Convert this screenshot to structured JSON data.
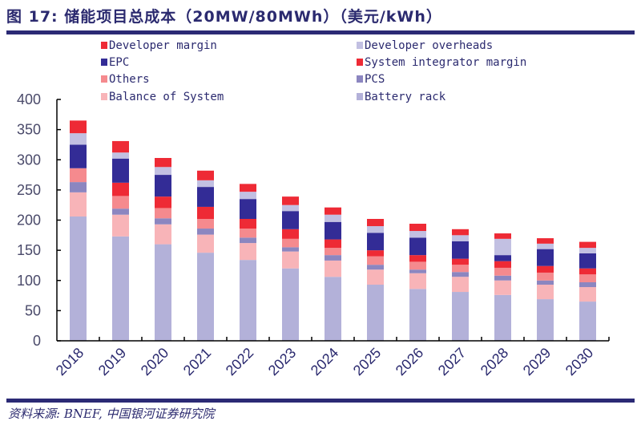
{
  "header": {
    "title": "图 17: 储能项目总成本（20MW/80MWh）（美元/kWh）"
  },
  "footer": {
    "source": "资料来源: BNEF, 中国银河证券研究院"
  },
  "chart_data": {
    "type": "bar",
    "stacked": true,
    "title": "储能项目总成本（20MW/80MWh）（美元/kWh）",
    "xlabel": "",
    "ylabel": "",
    "ylim": [
      0,
      400
    ],
    "yticks": [
      0,
      50,
      100,
      150,
      200,
      250,
      300,
      350,
      400
    ],
    "grid": false,
    "legend_placement": "top",
    "categories": [
      "2018",
      "2019",
      "2020",
      "2021",
      "2022",
      "2023",
      "2024",
      "2025",
      "2026",
      "2027",
      "2028",
      "2029",
      "2030"
    ],
    "series": [
      {
        "name": "Battery rack",
        "color": "#b3b1d9",
        "values": [
          206,
          173,
          160,
          146,
          134,
          120,
          106,
          93,
          86,
          81,
          76,
          69,
          65
        ]
      },
      {
        "name": "Balance of System",
        "color": "#f8b4b8",
        "values": [
          40,
          36,
          33,
          30,
          28,
          28,
          27,
          25,
          26,
          25,
          24,
          24,
          24
        ]
      },
      {
        "name": "PCS",
        "color": "#8c86c0",
        "values": [
          17,
          10,
          10,
          10,
          9,
          7,
          9,
          8,
          6,
          8,
          8,
          7,
          8
        ]
      },
      {
        "name": "Others",
        "color": "#f58a8e",
        "values": [
          23,
          21,
          17,
          16,
          15,
          14,
          12,
          14,
          13,
          12,
          13,
          13,
          13
        ]
      },
      {
        "name": "System integrator margin",
        "color": "#ee2a35",
        "values": [
          0,
          22,
          19,
          20,
          16,
          16,
          14,
          10,
          11,
          10,
          11,
          11,
          10
        ]
      },
      {
        "name": "EPC",
        "color": "#332c96",
        "values": [
          39,
          40,
          36,
          33,
          33,
          30,
          29,
          29,
          29,
          29,
          10,
          28,
          25
        ]
      },
      {
        "name": "Developer overheads",
        "color": "#c2c0e2",
        "values": [
          19,
          10,
          13,
          11,
          12,
          10,
          12,
          11,
          11,
          10,
          27,
          9,
          9
        ]
      },
      {
        "name": "Developer margin",
        "color": "#ee2a35",
        "values": [
          21,
          19,
          15,
          16,
          13,
          14,
          12,
          12,
          12,
          10,
          9,
          9,
          10
        ]
      }
    ],
    "legend_order": [
      "Developer margin",
      "Developer overheads",
      "EPC",
      "System integrator margin",
      "Others",
      "PCS",
      "Balance of System",
      "Battery rack"
    ]
  }
}
